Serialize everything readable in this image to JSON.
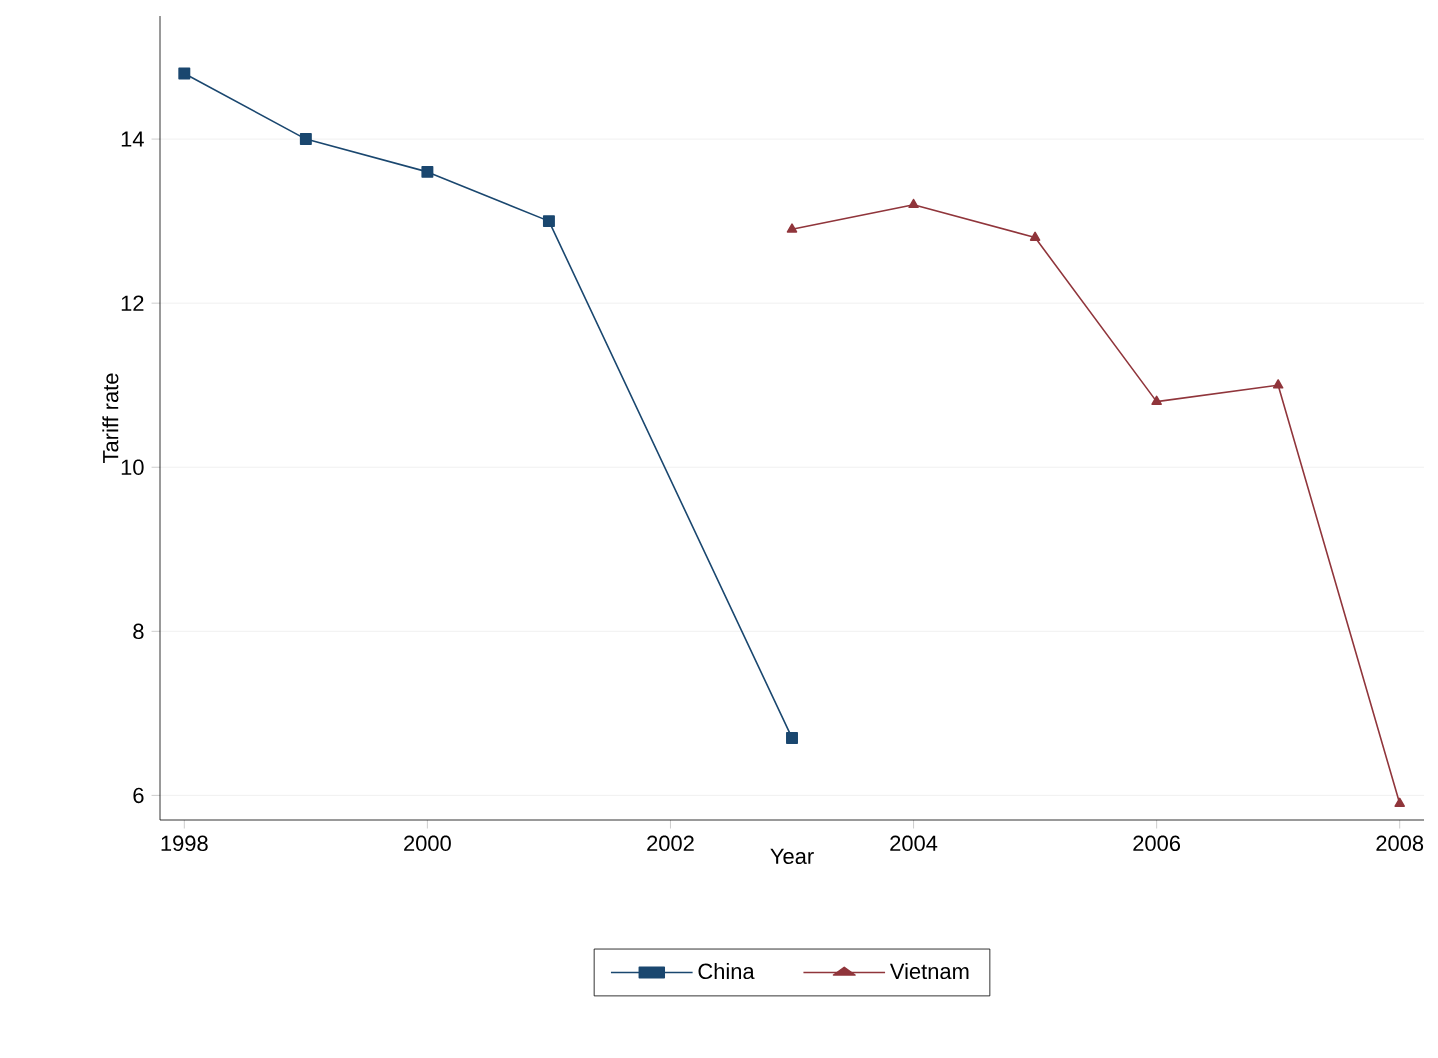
{
  "chart_data": {
    "type": "line",
    "xlabel": "Year",
    "ylabel": "Tariff rate",
    "series": [
      {
        "name": "China",
        "color": "#1a476f",
        "marker": "square",
        "x": [
          1998,
          1999,
          2000,
          2001,
          2003
        ],
        "values": [
          14.8,
          14.0,
          13.6,
          13.0,
          6.7
        ]
      },
      {
        "name": "Vietnam",
        "color": "#90353b",
        "marker": "triangle",
        "x": [
          2003,
          2004,
          2005,
          2006,
          2007,
          2008
        ],
        "values": [
          12.9,
          13.2,
          12.8,
          10.8,
          11.0,
          5.9
        ]
      }
    ],
    "xlim": [
      1997.8,
      2008.2
    ],
    "ylim": [
      5.7,
      15.5
    ],
    "xticks": [
      1998,
      2000,
      2002,
      2004,
      2006,
      2008
    ],
    "yticks": [
      6,
      8,
      10,
      12,
      14
    ],
    "grid": "y",
    "legend": "bottom",
    "line_style": "solid"
  }
}
